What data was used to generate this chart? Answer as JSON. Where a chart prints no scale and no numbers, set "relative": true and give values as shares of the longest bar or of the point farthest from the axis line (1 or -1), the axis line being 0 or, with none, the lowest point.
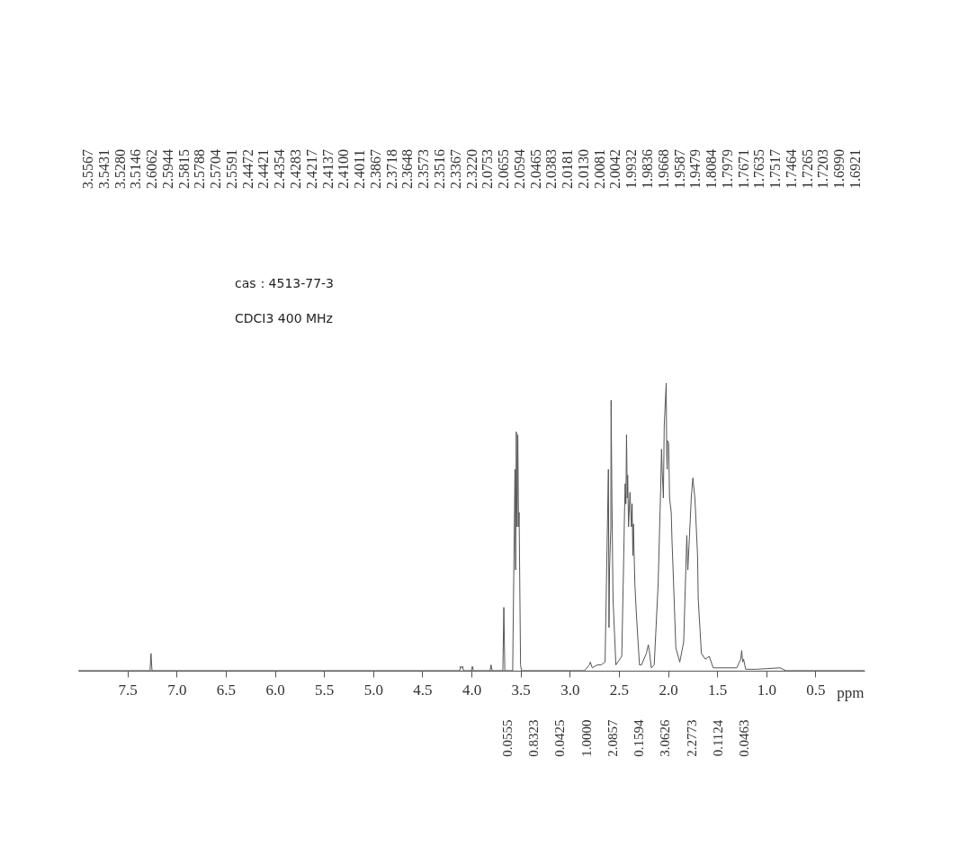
{
  "chart_data": {
    "type": "line",
    "relative": true,
    "title": "cas：4513-77-3",
    "subtitle": "CDCI3 400 MHz",
    "xlabel": "ppm",
    "xlim": [
      8.0,
      0.0
    ],
    "xticks": [
      {
        "value": 7.5,
        "label": "7.5"
      },
      {
        "value": 7.0,
        "label": "7.0"
      },
      {
        "value": 6.5,
        "label": "6.5"
      },
      {
        "value": 6.0,
        "label": "6.0"
      },
      {
        "value": 5.5,
        "label": "5.5"
      },
      {
        "value": 5.0,
        "label": "5.0"
      },
      {
        "value": 4.5,
        "label": "4.5"
      },
      {
        "value": 4.0,
        "label": "4.0"
      },
      {
        "value": 3.5,
        "label": "3.5"
      },
      {
        "value": 3.0,
        "label": "3.0"
      },
      {
        "value": 2.5,
        "label": "2.5"
      },
      {
        "value": 2.0,
        "label": "2.0"
      },
      {
        "value": 1.5,
        "label": "1.5"
      },
      {
        "value": 1.0,
        "label": "1.0"
      },
      {
        "value": 0.5,
        "label": "0.5"
      }
    ],
    "grid": false,
    "series": [
      {
        "color": "#555555",
        "x": [
          8.0,
          7.3,
          7.27,
          7.26,
          7.25,
          4.5,
          4.12,
          4.11,
          4.1,
          4.09,
          4.08,
          4.0,
          3.99,
          3.98,
          3.81,
          3.8,
          3.79,
          3.68,
          3.67,
          3.66,
          3.58,
          3.5567,
          3.55,
          3.5431,
          3.535,
          3.528,
          3.52,
          3.5146,
          3.5,
          3.49,
          2.85,
          2.8,
          2.79,
          2.77,
          2.72,
          2.68,
          2.64,
          2.6062,
          2.6,
          2.5944,
          2.5815,
          2.5788,
          2.5704,
          2.5591,
          2.53,
          2.47,
          2.4472,
          2.4421,
          2.4354,
          2.4283,
          2.4217,
          2.4137,
          2.41,
          2.4011,
          2.3867,
          2.3718,
          2.3648,
          2.3573,
          2.3516,
          2.3367,
          2.322,
          2.29,
          2.27,
          2.22,
          2.2,
          2.19,
          2.17,
          2.14,
          2.1,
          2.0753,
          2.0655,
          2.0594,
          2.0465,
          2.0383,
          2.0181,
          2.013,
          2.0081,
          2.0042,
          1.9932,
          1.9836,
          1.9668,
          1.9587,
          1.9479,
          1.92,
          1.88,
          1.84,
          1.8084,
          1.7979,
          1.7671,
          1.7635,
          1.7517,
          1.7464,
          1.7265,
          1.7203,
          1.699,
          1.6921,
          1.66,
          1.62,
          1.58,
          1.54,
          1.3,
          1.26,
          1.25,
          1.24,
          1.23,
          1.21,
          1.1,
          0.86,
          0.8,
          0.0
        ],
        "values": [
          0,
          0,
          0,
          0.06,
          0,
          0,
          0,
          0.015,
          0.01,
          0.015,
          0,
          0,
          0.015,
          0,
          0,
          0.02,
          0,
          0,
          0.22,
          0,
          0,
          0.7,
          0.35,
          0.83,
          0.5,
          0.82,
          0.5,
          0.55,
          0.02,
          0,
          0,
          0.02,
          0.03,
          0.01,
          0.02,
          0.02,
          0.03,
          0.7,
          0.15,
          0.35,
          0.5,
          0.94,
          0.6,
          0.25,
          0.02,
          0.05,
          0.45,
          0.55,
          0.65,
          0.58,
          0.82,
          0.6,
          0.68,
          0.5,
          0.62,
          0.5,
          0.58,
          0.4,
          0.51,
          0.3,
          0.2,
          0.02,
          0.02,
          0.06,
          0.09,
          0.07,
          0.01,
          0.02,
          0.3,
          0.62,
          0.77,
          0.7,
          0.6,
          0.85,
          1.0,
          0.75,
          0.7,
          0.8,
          0.79,
          0.6,
          0.55,
          0.45,
          0.35,
          0.08,
          0.03,
          0.1,
          0.47,
          0.35,
          0.57,
          0.6,
          0.65,
          0.67,
          0.6,
          0.56,
          0.4,
          0.25,
          0.06,
          0.04,
          0.05,
          0.01,
          0.01,
          0.04,
          0.07,
          0.03,
          0.04,
          0.005,
          0.005,
          0.01,
          0,
          0
        ]
      }
    ],
    "annotations": [
      "3.5567",
      "3.5431",
      "3.5280",
      "3.5146",
      "2.6062",
      "2.5944",
      "2.5815",
      "2.5788",
      "2.5704",
      "2.5591",
      "2.4472",
      "2.4421",
      "2.4354",
      "2.4283",
      "2.4217",
      "2.4137",
      "2.4100",
      "2.4011",
      "2.3867",
      "2.3718",
      "2.3648",
      "2.3573",
      "2.3516",
      "2.3367",
      "2.3220",
      "2.0753",
      "2.0655",
      "2.0594",
      "2.0465",
      "2.0383",
      "2.0181",
      "2.0130",
      "2.0081",
      "2.0042",
      "1.9932",
      "1.9836",
      "1.9668",
      "1.9587",
      "1.9479",
      "1.8084",
      "1.7979",
      "1.7671",
      "1.7635",
      "1.7517",
      "1.7464",
      "1.7265",
      "1.7203",
      "1.6990",
      "1.6921",
      "0.0555",
      "0.8323",
      "0.0425",
      "1.0000",
      "2.0857",
      "0.1594",
      "3.0626",
      "2.2773",
      "0.1124",
      "0.0463"
    ]
  }
}
